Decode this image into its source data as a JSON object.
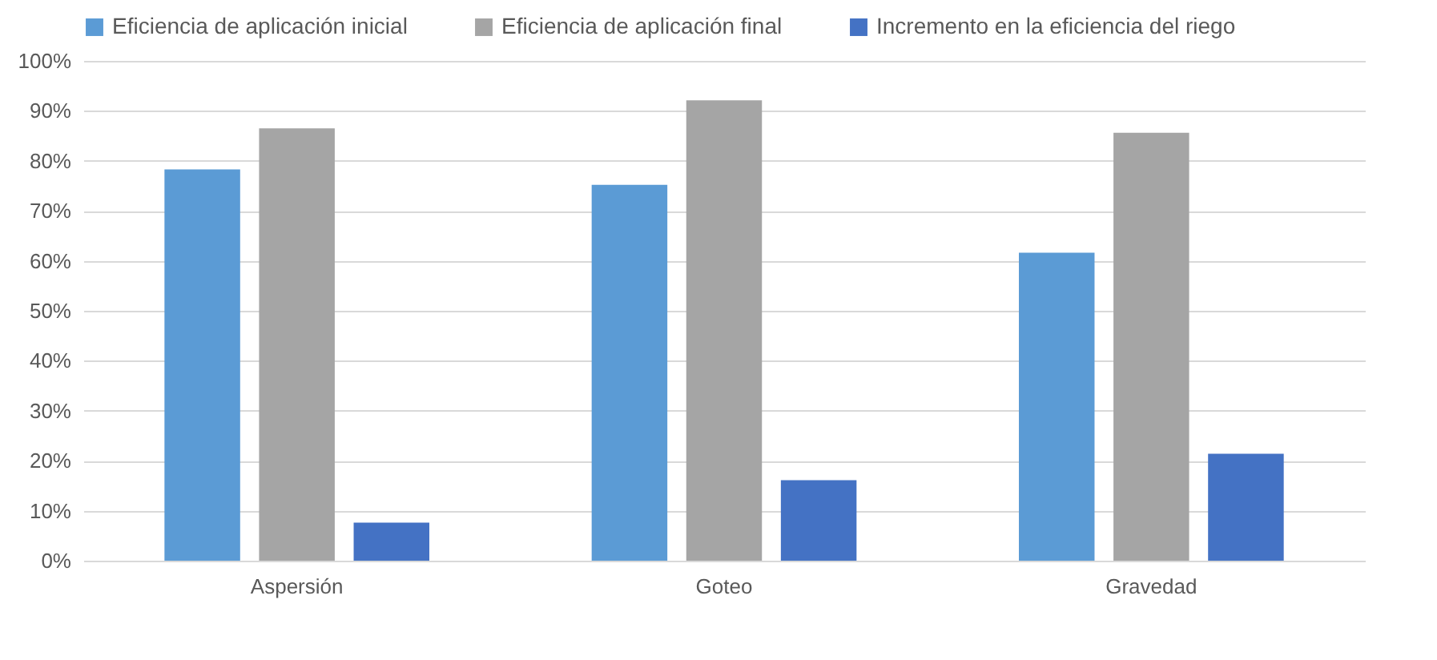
{
  "chart_data": {
    "type": "bar",
    "categories": [
      "Aspersión",
      "Goteo",
      "Gravedad"
    ],
    "series": [
      {
        "name": "Eficiencia de aplicación inicial",
        "color": "#5b9bd5",
        "values": [
          78.3,
          75.2,
          61.6
        ]
      },
      {
        "name": "Eficiencia de aplicación final",
        "color": "#a5a5a5",
        "values": [
          86.5,
          92.1,
          85.6
        ]
      },
      {
        "name": "Incremento en la eficiencia del riego",
        "color": "#4472c4",
        "values": [
          7.6,
          16.1,
          21.4
        ]
      }
    ],
    "ylim": [
      0,
      100
    ],
    "yticks": [
      {
        "value": 0,
        "label": "0%"
      },
      {
        "value": 10,
        "label": "10%"
      },
      {
        "value": 20,
        "label": "20%"
      },
      {
        "value": 30,
        "label": "30%"
      },
      {
        "value": 40,
        "label": "40%"
      },
      {
        "value": 50,
        "label": "50%"
      },
      {
        "value": 60,
        "label": "60%"
      },
      {
        "value": 70,
        "label": "70%"
      },
      {
        "value": 80,
        "label": "80%"
      },
      {
        "value": 90,
        "label": "90%"
      },
      {
        "value": 100,
        "label": "100%"
      }
    ],
    "grid": "y",
    "legend": "top"
  }
}
